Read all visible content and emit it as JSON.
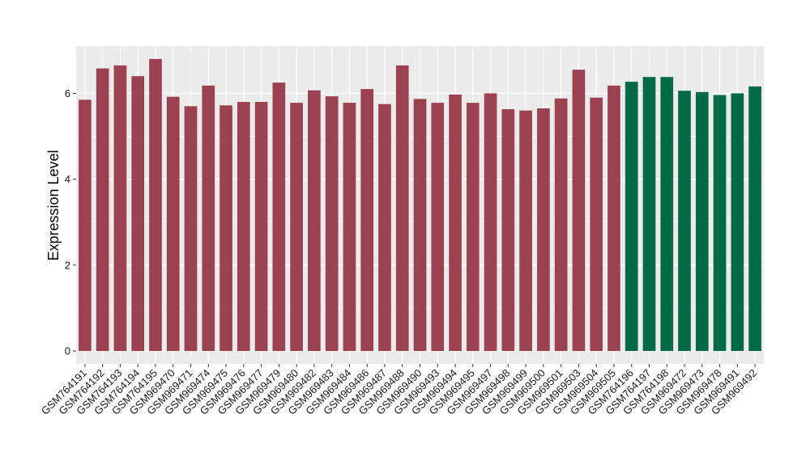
{
  "chart_data": {
    "type": "bar",
    "ylabel": "Expression Level",
    "xlabel": "",
    "ylim": [
      -0.3,
      7.1
    ],
    "yticks": [
      0,
      2,
      4,
      6
    ],
    "grid": true,
    "panel_background": "#ebebeb",
    "gridline_color": "#ffffff",
    "series_colors": [
      "#9c4150",
      "#006a45"
    ],
    "categories": [
      "GSM764191",
      "GSM764192",
      "GSM764193",
      "GSM764194",
      "GSM764195",
      "GSM969470",
      "GSM969471",
      "GSM969474",
      "GSM969475",
      "GSM969476",
      "GSM969477",
      "GSM969479",
      "GSM969480",
      "GSM969482",
      "GSM969483",
      "GSM969484",
      "GSM969486",
      "GSM969487",
      "GSM969488",
      "GSM969490",
      "GSM969493",
      "GSM969494",
      "GSM969495",
      "GSM969497",
      "GSM969498",
      "GSM969499",
      "GSM969500",
      "GSM969501",
      "GSM969503",
      "GSM969504",
      "GSM969505",
      "GSM764196",
      "GSM764197",
      "GSM764198",
      "GSM969472",
      "GSM969473",
      "GSM969478",
      "GSM969491",
      "GSM969492"
    ],
    "values": [
      5.85,
      6.58,
      6.65,
      6.4,
      6.8,
      5.92,
      5.7,
      6.18,
      5.72,
      5.8,
      5.8,
      6.25,
      5.78,
      6.07,
      5.93,
      5.78,
      6.1,
      5.75,
      6.65,
      5.87,
      5.78,
      5.97,
      5.78,
      6.0,
      5.63,
      5.6,
      5.65,
      5.88,
      6.55,
      5.9,
      6.18,
      6.27,
      6.38,
      6.38,
      6.06,
      6.03,
      5.96,
      6.0,
      6.16
    ],
    "groups": [
      0,
      0,
      0,
      0,
      0,
      0,
      0,
      0,
      0,
      0,
      0,
      0,
      0,
      0,
      0,
      0,
      0,
      0,
      0,
      0,
      0,
      0,
      0,
      0,
      0,
      0,
      0,
      0,
      0,
      0,
      0,
      1,
      1,
      1,
      1,
      1,
      1,
      1,
      1
    ]
  }
}
